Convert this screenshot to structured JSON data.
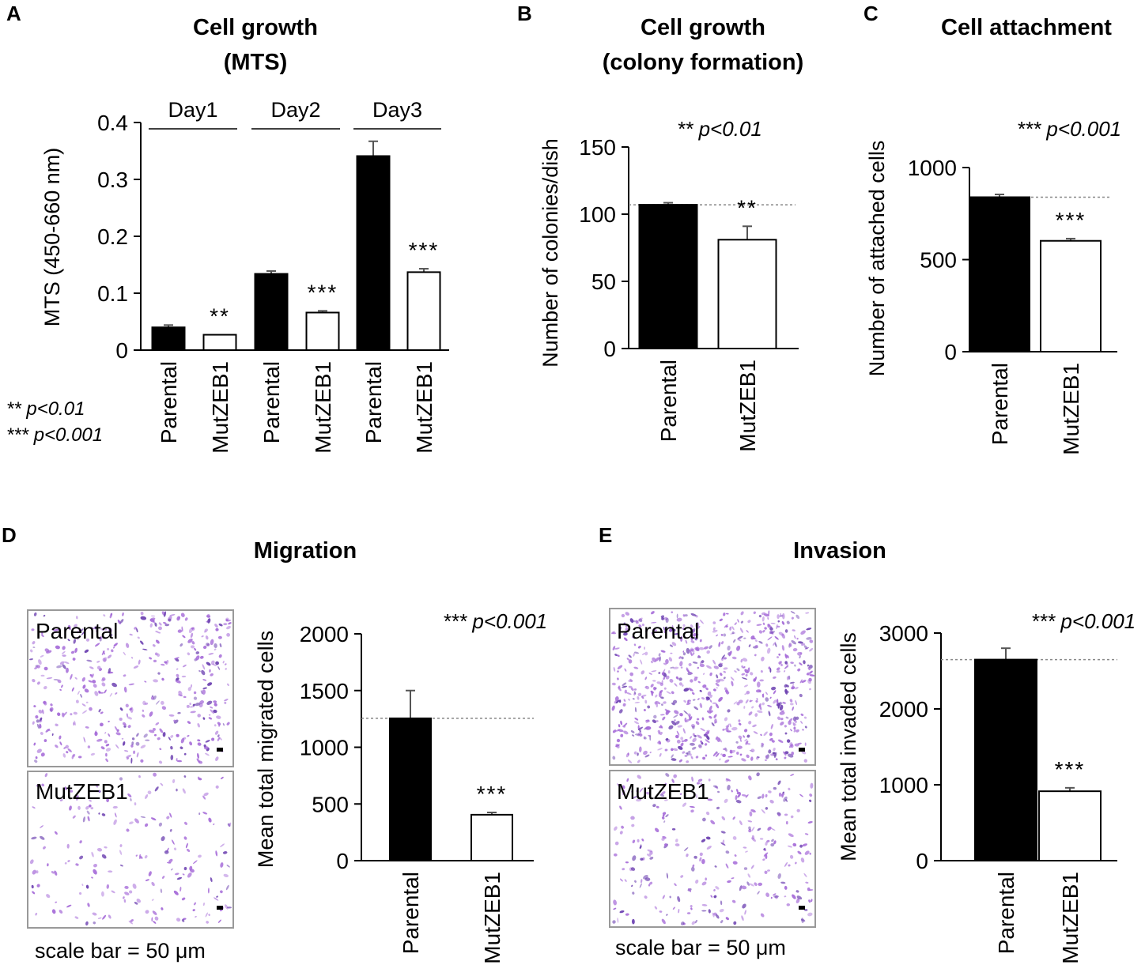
{
  "legend_a": {
    "line1": "** p<0.01",
    "line2": "*** p<0.001"
  },
  "chart_data": [
    {
      "panel": "A",
      "type": "bar",
      "title": "Cell growth",
      "subtitle": "(MTS)",
      "ylabel": "MTS (450-660 nm)",
      "ylim": [
        0,
        0.4
      ],
      "yticks": [
        0,
        0.1,
        0.2,
        0.3,
        0.4
      ],
      "ytick_labels": [
        "0",
        "0.1",
        "0.2",
        "0.3",
        "0.4"
      ],
      "groups": [
        "Day1",
        "Day2",
        "Day3"
      ],
      "categories": [
        "Parental",
        "MutZEB1",
        "Parental",
        "MutZEB1",
        "Parental",
        "MutZEB1"
      ],
      "values": [
        0.04,
        0.027,
        0.134,
        0.066,
        0.341,
        0.137
      ],
      "errors": [
        0.004,
        0,
        0.005,
        0.003,
        0.026,
        0.006
      ],
      "fills": [
        "#000000",
        "#ffffff",
        "#000000",
        "#ffffff",
        "#000000",
        "#ffffff"
      ],
      "sig": [
        "",
        "**",
        "",
        "***",
        "",
        "***"
      ],
      "sig_note": ""
    },
    {
      "panel": "B",
      "type": "bar",
      "title": "Cell growth",
      "subtitle": "(colony formation)",
      "ylabel": "Number of colonies/dish",
      "ylim": [
        0,
        150
      ],
      "yticks": [
        0,
        50,
        100,
        150
      ],
      "ytick_labels": [
        "0",
        "50",
        "100",
        "150"
      ],
      "categories": [
        "Parental",
        "MutZEB1"
      ],
      "values": [
        107,
        81
      ],
      "errors": [
        1.5,
        10
      ],
      "fills": [
        "#000000",
        "#ffffff"
      ],
      "sig": [
        "",
        "**"
      ],
      "reference_line": 107,
      "sig_note": "**  p<0.01"
    },
    {
      "panel": "C",
      "type": "bar",
      "title": "Cell attachment",
      "ylabel": "Number of attached cells",
      "ylim": [
        0,
        1000
      ],
      "yticks": [
        0,
        500,
        1000
      ],
      "ytick_labels": [
        "0",
        "500",
        "1000"
      ],
      "categories": [
        "Parental",
        "MutZEB1"
      ],
      "values": [
        839,
        602
      ],
      "errors": [
        15,
        12
      ],
      "fills": [
        "#000000",
        "#ffffff"
      ],
      "sig": [
        "",
        "***"
      ],
      "reference_line": 839,
      "sig_note": "*** p<0.001"
    },
    {
      "panel": "D",
      "type": "bar",
      "title": "Migration",
      "ylabel": "Mean total migrated cells",
      "ylim": [
        0,
        2000
      ],
      "yticks": [
        0,
        500,
        1000,
        1500,
        2000
      ],
      "ytick_labels": [
        "0",
        "500",
        "1000",
        "1500",
        "2000"
      ],
      "categories": [
        "Parental",
        "MutZEB1"
      ],
      "values": [
        1255,
        405
      ],
      "errors": [
        245,
        20
      ],
      "fills": [
        "#000000",
        "#ffffff"
      ],
      "sig": [
        "",
        "***"
      ],
      "reference_line": 1255,
      "sig_note": "*** p<0.001"
    },
    {
      "panel": "E",
      "type": "bar",
      "title": "Invasion",
      "ylabel": "Mean total invaded cells",
      "ylim": [
        0,
        3000
      ],
      "yticks": [
        0,
        1000,
        2000,
        3000
      ],
      "ytick_labels": [
        "0",
        "1000",
        "2000",
        "3000"
      ],
      "categories": [
        "Parental",
        "MutZEB1"
      ],
      "values": [
        2650,
        915
      ],
      "errors": [
        150,
        45
      ],
      "fills": [
        "#000000",
        "#ffffff"
      ],
      "sig": [
        "",
        "***"
      ],
      "reference_line": 2650,
      "sig_note": "*** p<0.001"
    }
  ],
  "micrographs": {
    "D": {
      "top_label": "Parental",
      "bottom_label": "MutZEB1",
      "scale_text": "scale bar = 50 μm"
    },
    "E": {
      "top_label": "Parental",
      "bottom_label": "MutZEB1",
      "scale_text": "scale bar = 50 μm"
    }
  },
  "colors": {
    "stain": "#a56ad8",
    "stain_dark": "#6b3fb0",
    "bar": "#000000",
    "reference": "#888888"
  }
}
